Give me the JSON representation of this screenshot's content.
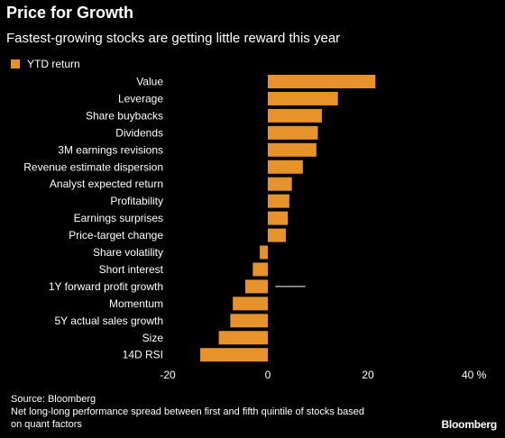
{
  "title": "Price for Growth",
  "subtitle": "Fastest-growing stocks are getting little reward this year",
  "colors": {
    "bar": "#E5932A",
    "background": "#000000",
    "text": "#ffffff",
    "annotation_line": "#ffffff"
  },
  "chart_data": {
    "type": "bar",
    "orientation": "horizontal",
    "legend": {
      "label": "YTD return",
      "placement": "top-left"
    },
    "categories": [
      "Value",
      "Leverage",
      "Share buybacks",
      "Dividends",
      "3M earnings revisions",
      "Revenue estimate dispersion",
      "Analyst expected return",
      "Profitability",
      "Earnings surprises",
      "Price-target change",
      "Share volatility",
      "Short interest",
      "1Y forward profit growth",
      "Momentum",
      "5Y actual sales growth",
      "Size",
      "14D RSI"
    ],
    "values": [
      21.5,
      14,
      10.8,
      10,
      9.7,
      7,
      4.8,
      4.3,
      4,
      3.6,
      -1.6,
      -3,
      -4.5,
      -7,
      -7.5,
      -9.8,
      -13.5
    ],
    "xlim": [
      -20,
      40
    ],
    "xticks": [
      -20,
      0,
      20,
      40
    ],
    "xtick_labels": [
      "-20",
      "0",
      "20",
      "40 %"
    ],
    "annotation": {
      "category": "1Y forward profit growth",
      "x_start": 1.5,
      "x_end": 7.5
    },
    "grid": false
  },
  "footer": {
    "source": "Source: Bloomberg",
    "note_line1": "Net long-long performance spread between first and fifth quintile of stocks based",
    "note_line2": "on quant factors"
  },
  "logo_text": "Bloomberg"
}
